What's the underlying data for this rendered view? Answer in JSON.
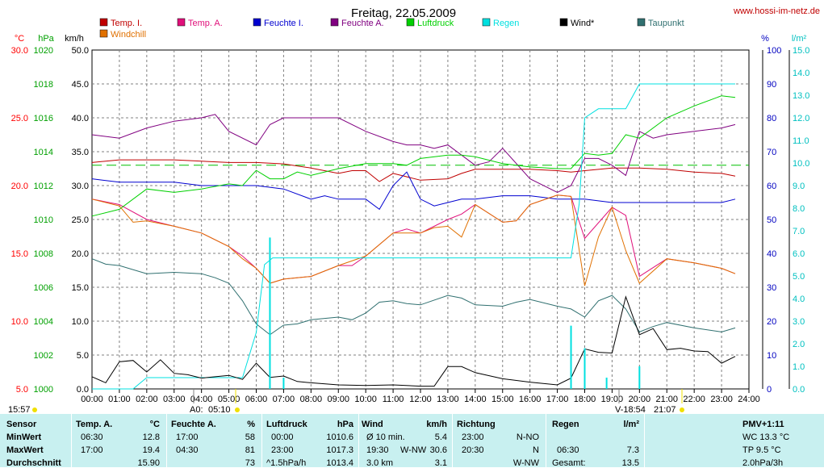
{
  "header": {
    "title": "Freitag, 22.05.2009",
    "site": "www.hossi-im-netz.de"
  },
  "axes": {
    "temp": {
      "unit": "°C",
      "ticks": [
        "30.0",
        "25.0",
        "20.0",
        "15.0",
        "10.0",
        "5.0"
      ],
      "min": 5,
      "max": 30,
      "color": "#ff0000"
    },
    "pressure": {
      "unit": "hPa",
      "ticks": [
        "1020",
        "1018",
        "1016",
        "1014",
        "1012",
        "1010",
        "1008",
        "1006",
        "1004",
        "1002",
        "1000"
      ],
      "min": 1000,
      "max": 1020,
      "color": "#00a000"
    },
    "wind": {
      "unit": "km/h",
      "ticks": [
        "50.0",
        "45.0",
        "40.0",
        "35.0",
        "30.0",
        "25.0",
        "20.0",
        "15.0",
        "10.0",
        "5.0",
        "0.0"
      ],
      "min": 0,
      "max": 50,
      "color": "#000000"
    },
    "humidity": {
      "unit": "%",
      "ticks": [
        "100",
        "90",
        "80",
        "70",
        "60",
        "50",
        "40",
        "30",
        "20",
        "10",
        "0"
      ],
      "min": 0,
      "max": 100,
      "color": "#0000c0"
    },
    "rain": {
      "unit": "l/m²",
      "ticks": [
        "15.0",
        "14.0",
        "13.0",
        "12.0",
        "11.0",
        "10.0",
        "9.0",
        "8.0",
        "7.0",
        "6.0",
        "5.0",
        "4.0",
        "3.0",
        "2.0",
        "1.0",
        "0.0"
      ],
      "min": 0,
      "max": 15,
      "color": "#00c0c0"
    },
    "x": {
      "ticks": [
        "00:00",
        "01:00",
        "02:00",
        "03:00",
        "04:00",
        "05:00",
        "06:00",
        "07:00",
        "08:00",
        "09:00",
        "10:00",
        "11:00",
        "12:00",
        "13:00",
        "14:00",
        "15:00",
        "16:00",
        "17:00",
        "18:00",
        "19:00",
        "20:00",
        "21:00",
        "22:00",
        "23:00",
        "24:00"
      ]
    }
  },
  "legend": [
    {
      "name": "Temp. I.",
      "color": "#c00000"
    },
    {
      "name": "Temp. A.",
      "color": "#e0107a"
    },
    {
      "name": "Feuchte I.",
      "color": "#0000d0"
    },
    {
      "name": "Feuchte A.",
      "color": "#800080"
    },
    {
      "name": "Luftdruck",
      "color": "#00d000"
    },
    {
      "name": "Regen",
      "color": "#00e0e0"
    },
    {
      "name": "Wind*",
      "color": "#000000"
    },
    {
      "name": "Taupunkt",
      "color": "#307070"
    },
    {
      "name": "Windchill",
      "color": "#e07000"
    }
  ],
  "annotations": {
    "sunrise": "15:57",
    "moon_a": "A0:",
    "moon_time": "05:10",
    "sun_v": "V-18:54",
    "sunset": "21:07"
  },
  "chart_data": {
    "type": "line",
    "x_range": [
      "00:00",
      "24:00"
    ],
    "reference_line": {
      "axis": "pressure",
      "value": 1013.2,
      "color": "#00c000",
      "style": "dashed"
    },
    "series": [
      {
        "name": "Temp. I.",
        "axis": "temp",
        "color": "#c00000",
        "x": [
          0,
          1,
          2,
          3,
          4,
          5,
          6,
          7,
          8,
          9,
          9.5,
          10,
          10.5,
          11,
          12,
          13,
          13.5,
          14,
          15,
          16,
          17,
          17.5,
          18,
          19,
          20,
          21,
          22,
          23,
          23.5
        ],
        "y": [
          21.7,
          21.9,
          21.9,
          21.9,
          21.8,
          21.7,
          21.7,
          21.6,
          21.3,
          20.9,
          21.1,
          21.1,
          20.3,
          20.9,
          20.4,
          20.5,
          20.9,
          21.2,
          21.2,
          21.2,
          21.1,
          21.0,
          21.1,
          21.3,
          21.3,
          21.2,
          21.0,
          20.9,
          20.7
        ]
      },
      {
        "name": "Temp. A.",
        "axis": "temp",
        "color": "#e0107a",
        "x": [
          0,
          1,
          2,
          3,
          4,
          5,
          5.5,
          6,
          6.5,
          7,
          8,
          9,
          9.5,
          10,
          11,
          11.5,
          12,
          13,
          13.5,
          14,
          15,
          15.5,
          16,
          17,
          17.5,
          18,
          19,
          19.5,
          20,
          21,
          22,
          23,
          23.5
        ],
        "y": [
          19.0,
          18.6,
          17.5,
          17.0,
          16.5,
          15.5,
          14.8,
          13.9,
          12.8,
          13.1,
          13.3,
          14.1,
          14.1,
          14.8,
          16.5,
          16.8,
          16.5,
          17.5,
          17.9,
          18.6,
          17.3,
          17.4,
          18.6,
          19.3,
          19.2,
          16.1,
          18.4,
          17.8,
          13.3,
          14.6,
          14.3,
          13.9,
          13.5
        ]
      },
      {
        "name": "Feuchte I.",
        "axis": "humidity",
        "color": "#0000d0",
        "x": [
          0,
          1,
          2,
          3,
          4,
          5,
          6,
          7,
          8,
          8.5,
          9,
          10,
          10.5,
          11,
          11.5,
          12,
          12.5,
          13,
          13.5,
          14,
          15,
          16,
          17,
          17.5,
          18,
          19,
          19.5,
          20,
          21,
          22,
          23,
          23.5
        ],
        "y": [
          62,
          61,
          61,
          61,
          60,
          60,
          60,
          59,
          56,
          57,
          56,
          56,
          53,
          60,
          64,
          56,
          54,
          55,
          56,
          56,
          57,
          57,
          56,
          56,
          56,
          55,
          55,
          55,
          55,
          55,
          55,
          56
        ]
      },
      {
        "name": "Feuchte A.",
        "axis": "humidity",
        "color": "#800080",
        "x": [
          0,
          1,
          2,
          3,
          4,
          4.5,
          5,
          6,
          6.5,
          7,
          8,
          9,
          10,
          11,
          11.5,
          12,
          12.5,
          13,
          14,
          14.5,
          15,
          16,
          17,
          17.5,
          18,
          18.5,
          19,
          19.5,
          20,
          20.5,
          21,
          22,
          23,
          23.5
        ],
        "y": [
          75,
          74,
          77,
          79,
          80,
          81,
          76,
          72,
          78,
          80,
          80,
          80,
          76,
          73,
          72,
          72,
          71,
          72,
          66,
          67,
          71,
          62,
          58,
          60,
          68,
          68,
          66,
          63,
          76,
          74,
          75,
          76,
          77,
          78
        ]
      },
      {
        "name": "Luftdruck",
        "axis": "pressure",
        "color": "#00d000",
        "x": [
          0,
          1,
          2,
          3,
          4,
          5,
          5.5,
          6,
          6.5,
          7,
          7.5,
          8,
          9,
          10,
          11,
          11.5,
          12,
          13,
          13.5,
          14,
          15,
          16,
          17,
          17.5,
          18,
          18.5,
          19,
          19.5,
          20,
          21,
          22,
          23,
          23.5
        ],
        "y": [
          1010.2,
          1010.6,
          1011.8,
          1011.6,
          1011.8,
          1012.1,
          1012.0,
          1012.9,
          1012.4,
          1012.4,
          1012.8,
          1012.6,
          1013.0,
          1013.3,
          1013.3,
          1013.2,
          1013.6,
          1013.8,
          1013.8,
          1013.7,
          1013.3,
          1013.1,
          1013.0,
          1013.0,
          1013.9,
          1013.8,
          1013.9,
          1015.0,
          1014.8,
          1016.0,
          1016.7,
          1017.3,
          1017.2
        ]
      },
      {
        "name": "Windchill",
        "axis": "temp",
        "color": "#e07000",
        "x": [
          0,
          1,
          1.5,
          2,
          3,
          4,
          5,
          5.5,
          6,
          6.5,
          7,
          8,
          9,
          10,
          11,
          12,
          12.5,
          13,
          13.5,
          14,
          15,
          15.5,
          16,
          17,
          17.5,
          18,
          18.5,
          19,
          19.5,
          20,
          21,
          22,
          23,
          23.5
        ],
        "y": [
          19.0,
          18.5,
          17.3,
          17.4,
          17.0,
          16.5,
          15.5,
          14.6,
          13.9,
          12.8,
          13.1,
          13.3,
          14.1,
          14.8,
          16.5,
          16.5,
          16.9,
          17.0,
          16.2,
          18.6,
          17.3,
          17.4,
          18.6,
          19.3,
          19.2,
          12.6,
          16.2,
          18.4,
          15.2,
          12.8,
          14.6,
          14.3,
          13.9,
          13.5
        ]
      },
      {
        "name": "Taupunkt",
        "axis": "temp",
        "color": "#307070",
        "x": [
          0,
          0.5,
          1,
          2,
          3,
          4,
          4.5,
          5,
          5.5,
          6,
          6.5,
          7,
          7.5,
          8,
          9,
          9.5,
          10,
          10.5,
          11,
          11.5,
          12,
          13,
          13.5,
          14,
          15,
          15.5,
          16,
          17,
          17.5,
          18,
          18.5,
          19,
          19.5,
          20,
          20.5,
          21,
          22,
          23,
          23.5
        ],
        "y": [
          14.6,
          14.2,
          14.1,
          13.5,
          13.6,
          13.5,
          13.2,
          12.8,
          11.5,
          9.8,
          9.0,
          9.7,
          9.8,
          10.1,
          10.3,
          10.1,
          10.6,
          11.4,
          11.5,
          11.3,
          11.2,
          11.9,
          11.7,
          11.2,
          11.1,
          11.4,
          11.6,
          11.1,
          10.9,
          10.3,
          11.5,
          11.9,
          10.9,
          9.2,
          9.6,
          9.9,
          9.5,
          9.2,
          9.5
        ]
      },
      {
        "name": "Regen",
        "axis": "rain",
        "color": "#00e0e0",
        "x": [
          0,
          1.5,
          2,
          3,
          4,
          5,
          5.5,
          6,
          6.3,
          6.6,
          7,
          8,
          9,
          10,
          11,
          12,
          13,
          14,
          15,
          16,
          16.5,
          17,
          17.5,
          17.8,
          18,
          18.5,
          19,
          19.5,
          20,
          21,
          22,
          23,
          23.5
        ],
        "y": [
          0,
          0,
          0.5,
          0.5,
          0.5,
          0.5,
          0.5,
          2.5,
          5.5,
          5.8,
          5.8,
          5.8,
          5.8,
          5.8,
          5.8,
          5.8,
          5.8,
          5.8,
          5.8,
          5.8,
          5.8,
          5.8,
          5.8,
          8.2,
          12.0,
          12.4,
          12.4,
          12.4,
          13.5,
          13.5,
          13.5,
          13.5,
          13.5
        ]
      },
      {
        "name": "Wind*",
        "axis": "wind",
        "color": "#000000",
        "x": [
          0,
          0.5,
          1,
          1.5,
          2,
          2.5,
          3,
          3.5,
          4,
          4.5,
          5,
          5.5,
          6,
          6.5,
          7,
          7.5,
          8,
          9,
          10,
          11,
          12,
          12.5,
          13,
          13.5,
          14,
          15,
          16,
          17,
          17.5,
          18,
          18.5,
          19,
          19.5,
          20,
          20.5,
          21,
          21.5,
          22,
          22.5,
          23,
          23.5
        ],
        "y": [
          1.8,
          0.9,
          4.0,
          4.2,
          2.5,
          4.3,
          2.3,
          2.1,
          1.6,
          1.8,
          2.0,
          1.4,
          3.8,
          1.7,
          1.9,
          1.1,
          0.9,
          0.6,
          0.5,
          0.6,
          0.4,
          0.4,
          3.3,
          3.3,
          2.4,
          1.5,
          1.0,
          0.6,
          1.6,
          5.9,
          5.4,
          5.3,
          13.6,
          8.0,
          8.9,
          5.8,
          6.0,
          5.6,
          5.5,
          3.8,
          4.8
        ]
      },
      {
        "name": "Regen-Bars",
        "axis": "rain",
        "color": "#00e0e0",
        "x": [
          6.5,
          7,
          17.5,
          18,
          18.8,
          20
        ],
        "y": [
          6.7,
          0.5,
          2.8,
          1.8,
          0.5,
          1.0
        ]
      }
    ]
  },
  "panel": {
    "sensor": {
      "h": "Sensor",
      "r1": "MinWert",
      "r2": "MaxWert",
      "r3": "Durchschnitt"
    },
    "tempA": {
      "h": "Temp. A.",
      "u": "°C",
      "t1": "06:30",
      "v1": "12.8",
      "t2": "17:00",
      "v2": "19.4",
      "v3": "15.90"
    },
    "feuchteA": {
      "h": "Feuchte A.",
      "u": "%",
      "t1": "17:00",
      "v1": "58",
      "t2": "04:30",
      "v2": "81",
      "v3": "73"
    },
    "luftdruck": {
      "h": "Luftdruck",
      "u": "hPa",
      "t1": "00:00",
      "v1": "1010.6",
      "t2": "23:00",
      "v2": "1017.3",
      "t3": "^1.5hPa/h",
      "v3": "1013.4"
    },
    "wind": {
      "h": "Wind",
      "u": "km/h",
      "t1": "Ø 10 min.",
      "v1": "5.4",
      "t2": "19:30",
      "d2": "W-NW",
      "v2": "30.6",
      "t3": "3.0 km",
      "v3": "3.1"
    },
    "richtung": {
      "h": "Richtung",
      "t1": "23:00",
      "v1": "N-NO",
      "t2": "20:30",
      "v2": "N",
      "v3": "W-NW"
    },
    "regen": {
      "h": "Regen",
      "u": "l/m²",
      "t2": "06:30",
      "v2": "7.3",
      "t3": "Gesamt:",
      "v3": "13.5"
    },
    "pmv": {
      "h": "PMV+1:11",
      "r1": "WC 13.3 °C",
      "r2": "TP 9.5 °C",
      "r3": "2.0hPa/3h"
    }
  }
}
